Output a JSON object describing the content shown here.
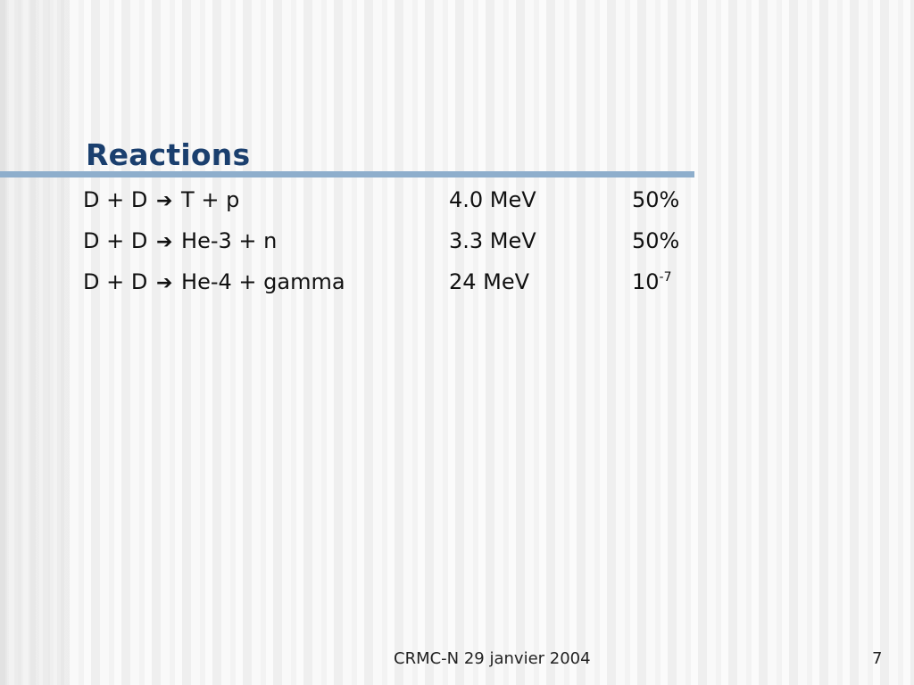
{
  "slide": {
    "title": "Reactions",
    "reactions": [
      {
        "lhs": "D + D",
        "arrow": "➔",
        "rhs": "T + p",
        "energy": "4.0 MeV",
        "prob": "50%",
        "prob_exp": ""
      },
      {
        "lhs": "D + D",
        "arrow": "➔",
        "rhs": "He-3 + n",
        "energy": "3.3 MeV",
        "prob": "50%",
        "prob_exp": ""
      },
      {
        "lhs": "D + D",
        "arrow": "➔",
        "rhs": "He-4 + gamma",
        "energy": "24 MeV",
        "prob": "10",
        "prob_exp": "-7"
      }
    ],
    "footer": "CRMC-N 29 janvier 2004",
    "page_number": "7"
  }
}
